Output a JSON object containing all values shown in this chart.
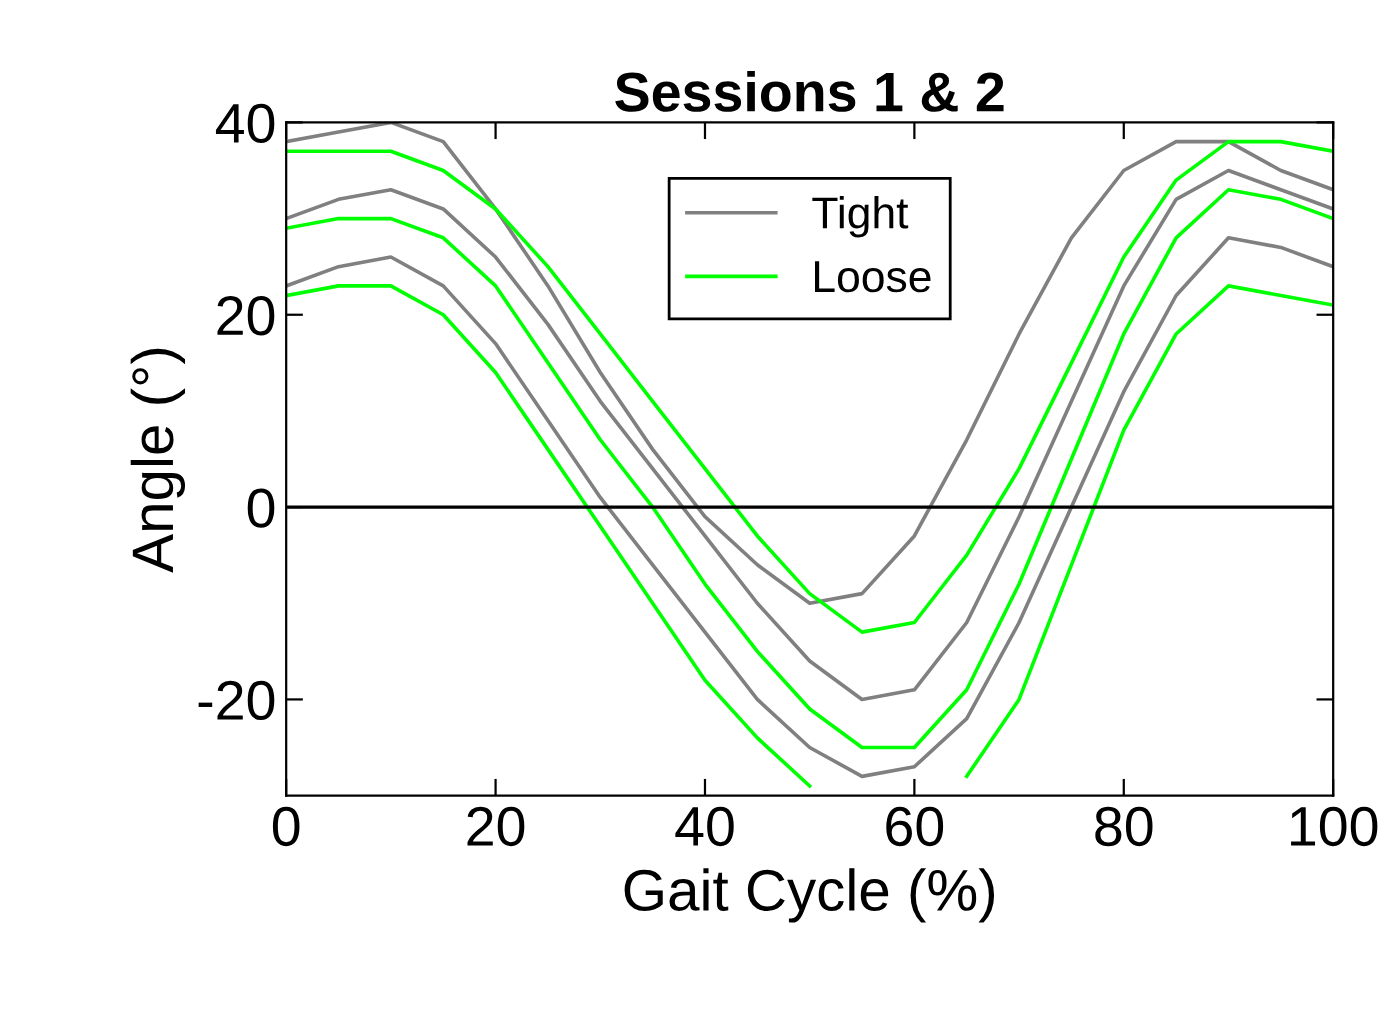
{
  "chart_data": {
    "type": "line",
    "title": "Sessions 1 & 2",
    "xlabel": "Gait Cycle (%)",
    "ylabel": "Angle (°)",
    "x": [
      0,
      5,
      10,
      15,
      20,
      25,
      30,
      35,
      40,
      45,
      50,
      55,
      60,
      65,
      70,
      75,
      80,
      85,
      90,
      95,
      100
    ],
    "xlim": [
      0,
      100
    ],
    "xticks": [
      0,
      20,
      40,
      60,
      80,
      100
    ],
    "ylim": [
      -30,
      40
    ],
    "yticks": [
      -20,
      0,
      20,
      40
    ],
    "grid": false,
    "legend": "top",
    "marker": "none",
    "line_style": "solid",
    "ref_lines": [
      {
        "axis": "y",
        "value": 0,
        "color": "#000000"
      }
    ],
    "series": [
      {
        "name": "Tight",
        "color": "#808080",
        "values": [
          38,
          39,
          40,
          38,
          31,
          23,
          14,
          6,
          -1,
          -6,
          -10,
          -9,
          -3,
          7,
          18,
          28,
          35,
          38,
          38,
          35,
          33
        ]
      },
      {
        "color": "#808080",
        "values": [
          30,
          32,
          33,
          31,
          26,
          19,
          11,
          4,
          -3,
          -10,
          -16,
          -20,
          -19,
          -12,
          -1,
          11,
          23,
          32,
          35,
          33,
          31
        ]
      },
      {
        "color": "#808080",
        "values": [
          23,
          25,
          26,
          23,
          17,
          9,
          1,
          -6,
          -13,
          -20,
          -25,
          -28,
          -27,
          -22,
          -12,
          0,
          12,
          22,
          28,
          27,
          25
        ]
      },
      {
        "name": "Loose",
        "color": "#00ff00",
        "values": [
          37,
          37,
          37,
          35,
          31,
          25,
          18,
          11,
          4,
          -3,
          -9,
          -13,
          -12,
          -5,
          4,
          15,
          26,
          34,
          38,
          38,
          37
        ]
      },
      {
        "color": "#00ff00",
        "values": [
          29,
          30,
          30,
          28,
          23,
          15,
          7,
          0,
          -8,
          -15,
          -21,
          -25,
          -25,
          -19,
          -8,
          5,
          18,
          28,
          33,
          32,
          30
        ]
      },
      {
        "color": "#00ff00",
        "values": [
          22,
          23,
          23,
          20,
          14,
          6,
          -2,
          -10,
          -18,
          -24,
          -29,
          null,
          null,
          -28,
          -20,
          -6,
          8,
          18,
          23,
          22,
          21
        ]
      }
    ]
  }
}
